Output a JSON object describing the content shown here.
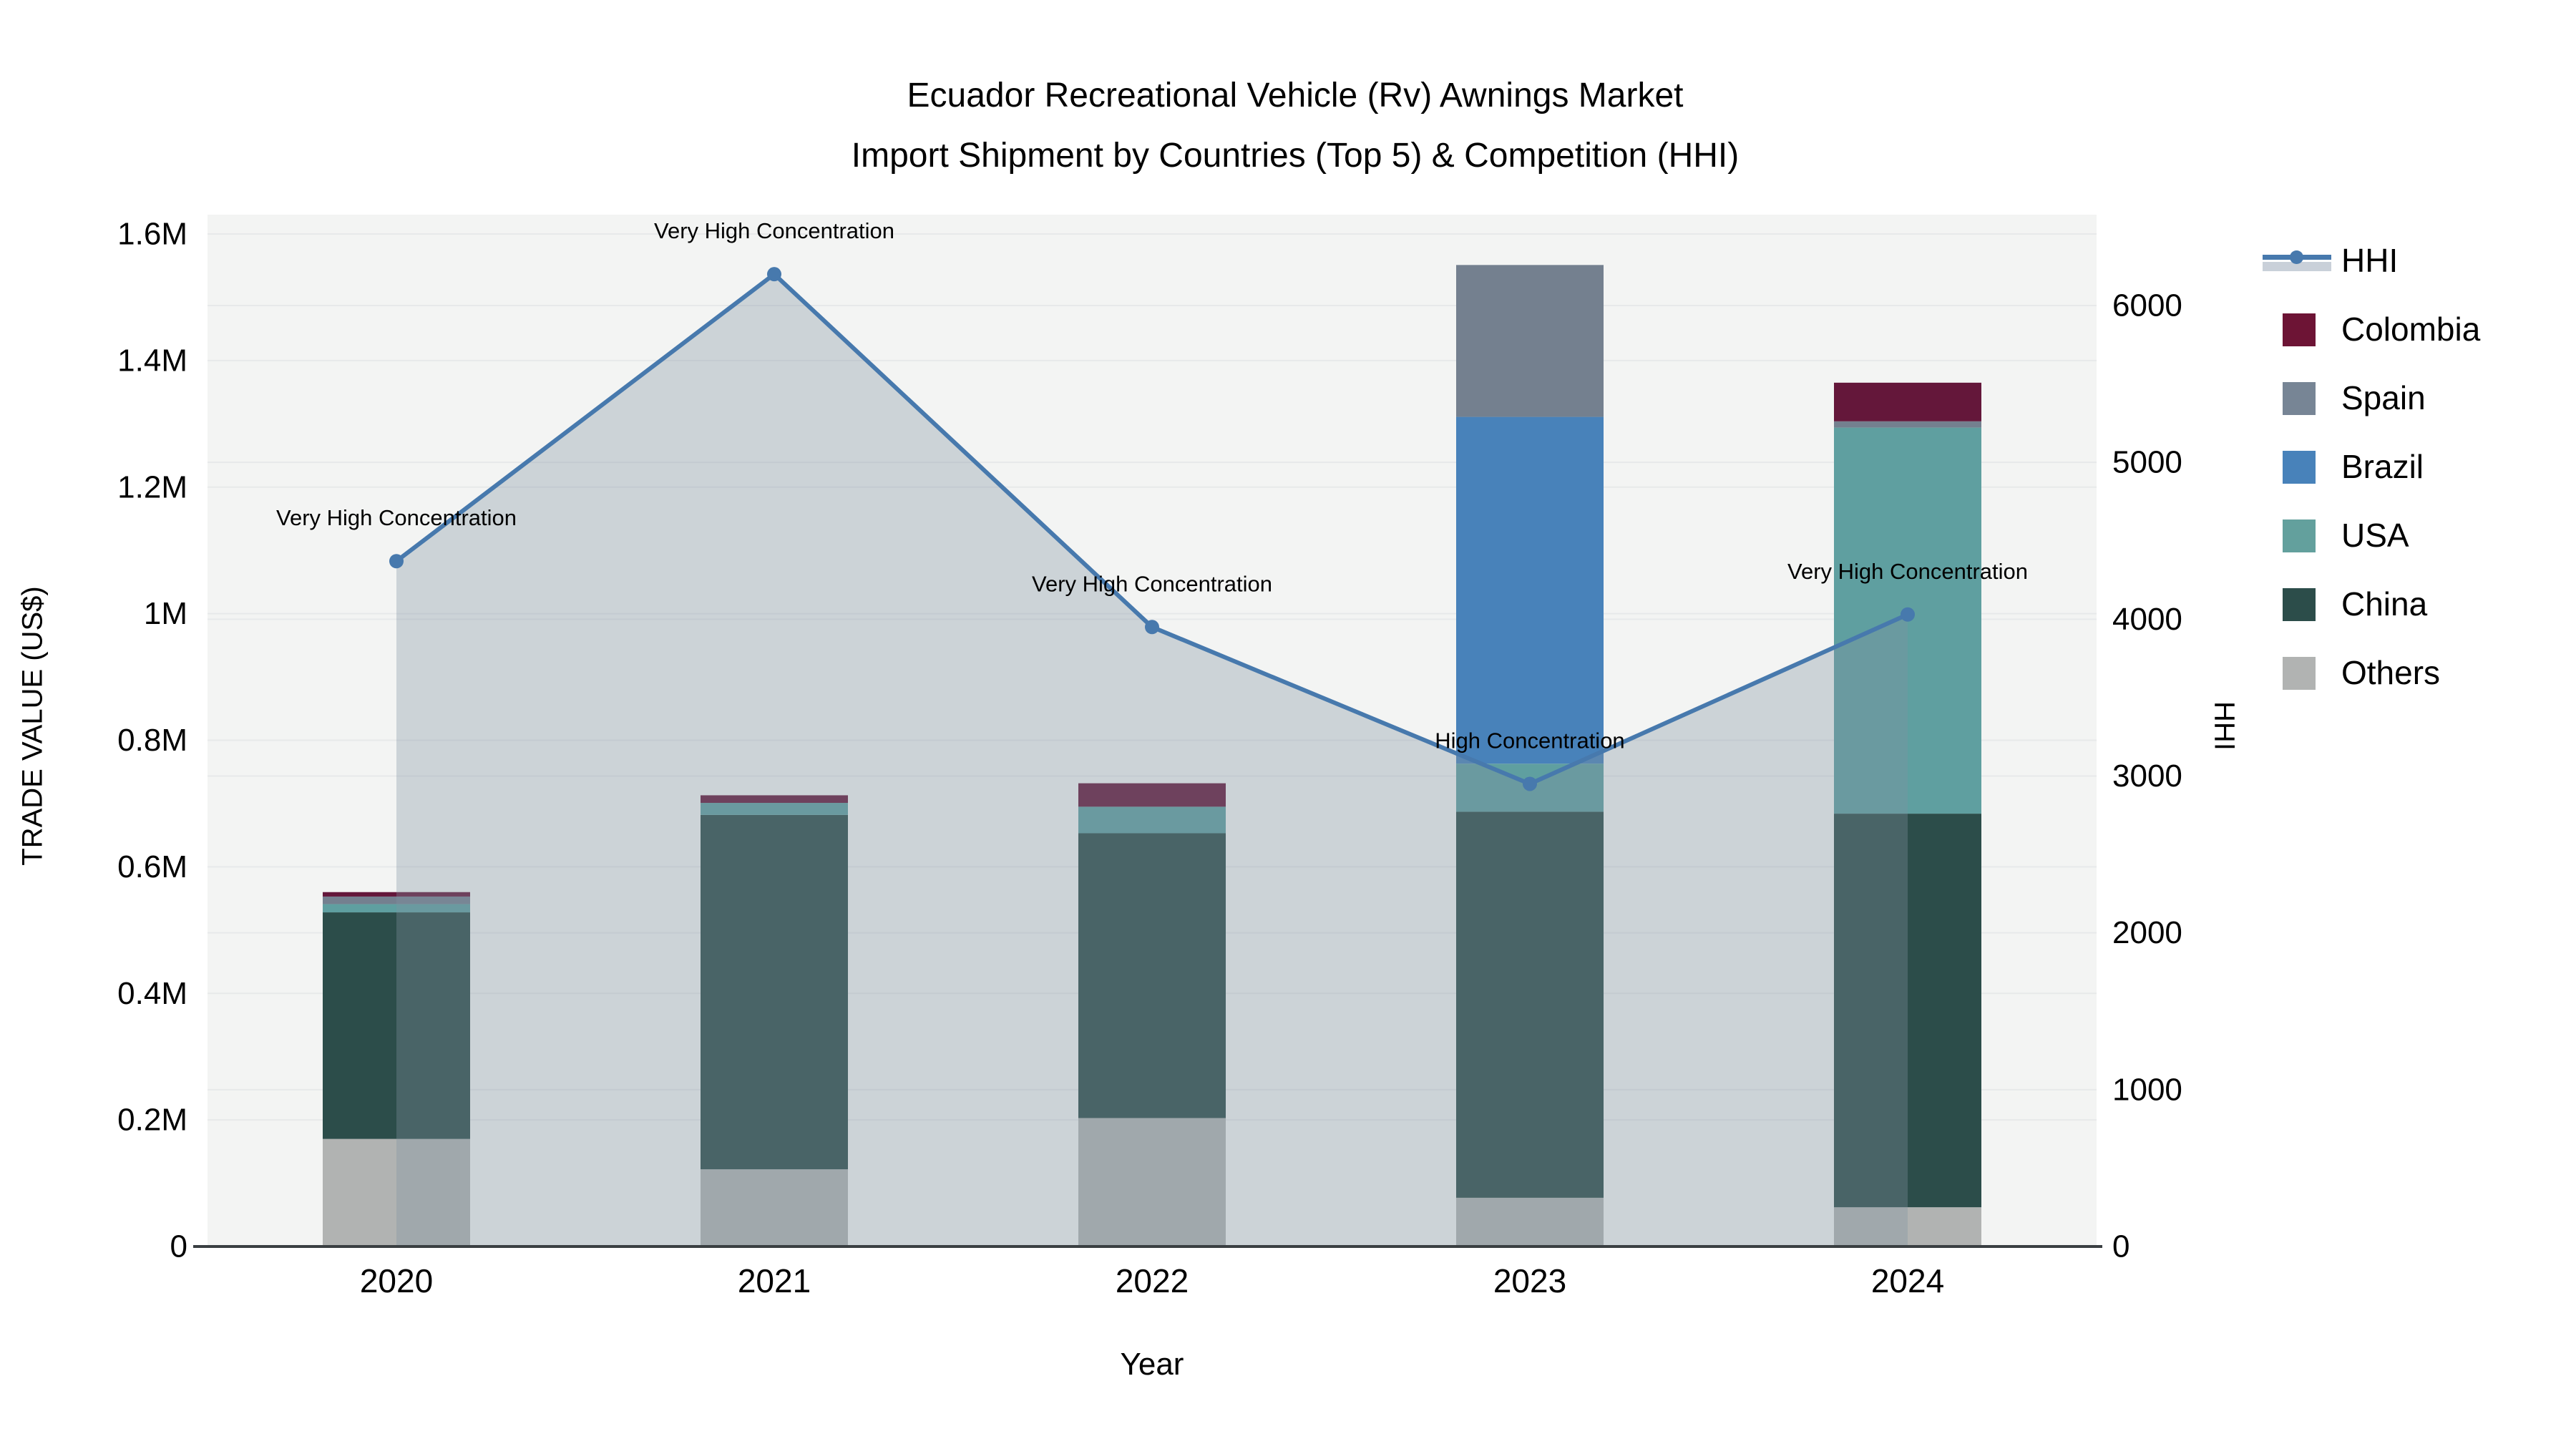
{
  "title": {
    "line1": "Ecuador Recreational Vehicle (Rv) Awnings Market",
    "line2": "Import Shipment by Countries (Top 5) & Competition (HHI)"
  },
  "chart_data": {
    "type": "bar+line",
    "categories": [
      "2020",
      "2021",
      "2022",
      "2023",
      "2024"
    ],
    "stack_order": [
      "Others",
      "China",
      "USA",
      "Brazil",
      "Spain",
      "Colombia"
    ],
    "series": [
      {
        "name": "Colombia",
        "color": "#64173a",
        "values": [
          7000,
          12000,
          37000,
          0,
          61000
        ]
      },
      {
        "name": "Spain",
        "color": "#74808f",
        "values": [
          12000,
          0,
          0,
          240000,
          10000
        ]
      },
      {
        "name": "Brazil",
        "color": "#4882ba",
        "values": [
          0,
          0,
          0,
          548000,
          0
        ]
      },
      {
        "name": "USA",
        "color": "#5f9fa0",
        "values": [
          13000,
          19000,
          42000,
          76000,
          610000
        ]
      },
      {
        "name": "China",
        "color": "#2c4d4a",
        "values": [
          358000,
          560000,
          450000,
          610000,
          622000
        ]
      },
      {
        "name": "Others",
        "color": "#b1b3b2",
        "values": [
          170000,
          122000,
          203000,
          77000,
          62000
        ]
      }
    ],
    "line_series": {
      "name": "HHI",
      "color": "#4779ad",
      "fill_color": "rgba(130,146,160,0.34)",
      "values": [
        4370,
        6200,
        3950,
        2950,
        4030
      ],
      "annotations": [
        "Very High Concentration",
        "Very High Concentration",
        "Very High Concentration",
        "High Concentration",
        "Very High Concentration"
      ]
    },
    "left_axis": {
      "label": "TRADE VALUE (US$)",
      "max": 1600000,
      "ticks": [
        {
          "v": 0,
          "t": "0"
        },
        {
          "v": 200000,
          "t": "0.2M"
        },
        {
          "v": 400000,
          "t": "0.4M"
        },
        {
          "v": 600000,
          "t": "0.6M"
        },
        {
          "v": 800000,
          "t": "0.8M"
        },
        {
          "v": 1000000,
          "t": "1M"
        },
        {
          "v": 1200000,
          "t": "1.2M"
        },
        {
          "v": 1400000,
          "t": "1.4M"
        },
        {
          "v": 1600000,
          "t": "1.6M"
        }
      ]
    },
    "right_axis": {
      "label": "HHI",
      "max": 6000,
      "ticks": [
        {
          "v": 0,
          "t": "0"
        },
        {
          "v": 1000,
          "t": "1000"
        },
        {
          "v": 2000,
          "t": "2000"
        },
        {
          "v": 3000,
          "t": "3000"
        },
        {
          "v": 4000,
          "t": "4000"
        },
        {
          "v": 5000,
          "t": "5000"
        },
        {
          "v": 6000,
          "t": "6000"
        }
      ]
    },
    "x_axis": {
      "label": "Year"
    },
    "colors": {
      "plot_bg": "#f3f4f3",
      "grid": "#e7e9ea",
      "axis_line": "#3a3f42",
      "text": "#000000",
      "legend_band": "#c9d0d9"
    }
  },
  "legend": {
    "items": [
      {
        "label": "HHI",
        "type": "line",
        "color": "#4779ad"
      },
      {
        "label": "Colombia",
        "type": "swatch",
        "color": "#6d1435"
      },
      {
        "label": "Spain",
        "type": "swatch",
        "color": "#778595"
      },
      {
        "label": "Brazil",
        "type": "swatch",
        "color": "#4882ba"
      },
      {
        "label": "USA",
        "type": "swatch",
        "color": "#63a09d"
      },
      {
        "label": "China",
        "type": "swatch",
        "color": "#2c4d4a"
      },
      {
        "label": "Others",
        "type": "swatch",
        "color": "#b1b3b2"
      }
    ]
  }
}
